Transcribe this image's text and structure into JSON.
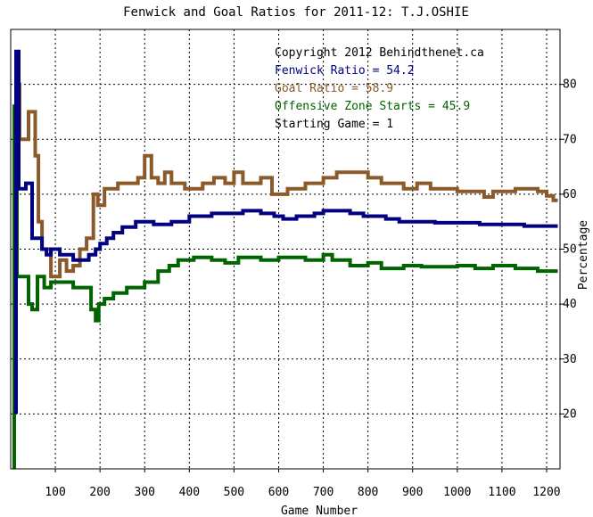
{
  "chart_data": {
    "type": "line",
    "title": "Fenwick and Goal Ratios for 2011-12: T.J.OSHIE",
    "xlabel": "Game Number",
    "ylabel": "Percentage",
    "xlim": [
      0,
      1230
    ],
    "ylim": [
      10,
      90
    ],
    "x_ticks": [
      100,
      200,
      300,
      400,
      500,
      600,
      700,
      800,
      900,
      1000,
      1100,
      1200
    ],
    "y_ticks": [
      20,
      30,
      40,
      50,
      60,
      70,
      80
    ],
    "grid": true,
    "legend_position": "top-right",
    "annotations": [
      "Copyright 2012 Behindthenet.ca",
      "Fenwick Ratio = 54.2",
      "Goal Ratio = 58.9",
      "Offensive Zone Starts = 45.9",
      "Starting Game = 1"
    ],
    "series": [
      {
        "name": "Fenwick Ratio",
        "color": "#000080",
        "points": [
          [
            12,
            20
          ],
          [
            12,
            86
          ],
          [
            18,
            86
          ],
          [
            18,
            61
          ],
          [
            34,
            61
          ],
          [
            34,
            62
          ],
          [
            48,
            62
          ],
          [
            48,
            52
          ],
          [
            70,
            52
          ],
          [
            70,
            50
          ],
          [
            80,
            50
          ],
          [
            80,
            49
          ],
          [
            90,
            49
          ],
          [
            90,
            50
          ],
          [
            110,
            50
          ],
          [
            110,
            49
          ],
          [
            140,
            49
          ],
          [
            140,
            48
          ],
          [
            175,
            48
          ],
          [
            175,
            49
          ],
          [
            190,
            49
          ],
          [
            190,
            50
          ],
          [
            200,
            50
          ],
          [
            200,
            51
          ],
          [
            215,
            51
          ],
          [
            215,
            52
          ],
          [
            230,
            52
          ],
          [
            230,
            53
          ],
          [
            250,
            53
          ],
          [
            250,
            54
          ],
          [
            280,
            54
          ],
          [
            280,
            55
          ],
          [
            320,
            55
          ],
          [
            320,
            54.5
          ],
          [
            360,
            54.5
          ],
          [
            360,
            55
          ],
          [
            400,
            55
          ],
          [
            400,
            56
          ],
          [
            450,
            56
          ],
          [
            450,
            56.5
          ],
          [
            520,
            56.5
          ],
          [
            520,
            57
          ],
          [
            560,
            57
          ],
          [
            560,
            56.5
          ],
          [
            590,
            56.5
          ],
          [
            590,
            56
          ],
          [
            610,
            56
          ],
          [
            610,
            55.5
          ],
          [
            640,
            55.5
          ],
          [
            640,
            56
          ],
          [
            680,
            56
          ],
          [
            680,
            56.5
          ],
          [
            700,
            56.5
          ],
          [
            700,
            57
          ],
          [
            760,
            57
          ],
          [
            760,
            56.5
          ],
          [
            790,
            56.5
          ],
          [
            790,
            56
          ],
          [
            840,
            56
          ],
          [
            840,
            55.5
          ],
          [
            870,
            55.5
          ],
          [
            870,
            55
          ],
          [
            950,
            55
          ],
          [
            950,
            54.8
          ],
          [
            1050,
            54.8
          ],
          [
            1050,
            54.5
          ],
          [
            1150,
            54.5
          ],
          [
            1150,
            54.2
          ],
          [
            1225,
            54.2
          ]
        ]
      },
      {
        "name": "Goal Ratio",
        "color": "#8b5a2b",
        "points": [
          [
            12,
            50
          ],
          [
            12,
            80
          ],
          [
            20,
            80
          ],
          [
            20,
            70
          ],
          [
            40,
            70
          ],
          [
            40,
            75
          ],
          [
            55,
            75
          ],
          [
            55,
            67
          ],
          [
            62,
            67
          ],
          [
            62,
            55
          ],
          [
            70,
            55
          ],
          [
            70,
            50
          ],
          [
            90,
            50
          ],
          [
            90,
            45
          ],
          [
            110,
            45
          ],
          [
            110,
            48
          ],
          [
            125,
            48
          ],
          [
            125,
            46
          ],
          [
            140,
            46
          ],
          [
            140,
            47
          ],
          [
            155,
            47
          ],
          [
            155,
            50
          ],
          [
            170,
            50
          ],
          [
            170,
            52
          ],
          [
            185,
            52
          ],
          [
            185,
            60
          ],
          [
            195,
            60
          ],
          [
            195,
            58
          ],
          [
            210,
            58
          ],
          [
            210,
            61
          ],
          [
            240,
            61
          ],
          [
            240,
            62
          ],
          [
            285,
            62
          ],
          [
            285,
            63
          ],
          [
            300,
            63
          ],
          [
            300,
            67
          ],
          [
            315,
            67
          ],
          [
            315,
            63
          ],
          [
            330,
            63
          ],
          [
            330,
            62
          ],
          [
            345,
            62
          ],
          [
            345,
            64
          ],
          [
            360,
            64
          ],
          [
            360,
            62
          ],
          [
            390,
            62
          ],
          [
            390,
            61
          ],
          [
            430,
            61
          ],
          [
            430,
            62
          ],
          [
            455,
            62
          ],
          [
            455,
            63
          ],
          [
            480,
            63
          ],
          [
            480,
            62
          ],
          [
            500,
            62
          ],
          [
            500,
            64
          ],
          [
            520,
            64
          ],
          [
            520,
            62
          ],
          [
            560,
            62
          ],
          [
            560,
            63
          ],
          [
            585,
            63
          ],
          [
            585,
            60
          ],
          [
            620,
            60
          ],
          [
            620,
            61
          ],
          [
            660,
            61
          ],
          [
            660,
            62
          ],
          [
            700,
            62
          ],
          [
            700,
            63
          ],
          [
            730,
            63
          ],
          [
            730,
            64
          ],
          [
            800,
            64
          ],
          [
            800,
            63
          ],
          [
            830,
            63
          ],
          [
            830,
            62
          ],
          [
            880,
            62
          ],
          [
            880,
            61
          ],
          [
            910,
            61
          ],
          [
            910,
            62
          ],
          [
            940,
            62
          ],
          [
            940,
            61
          ],
          [
            1000,
            61
          ],
          [
            1000,
            60.5
          ],
          [
            1060,
            60.5
          ],
          [
            1060,
            59.5
          ],
          [
            1080,
            59.5
          ],
          [
            1080,
            60.5
          ],
          [
            1130,
            60.5
          ],
          [
            1130,
            61
          ],
          [
            1180,
            61
          ],
          [
            1180,
            60.5
          ],
          [
            1200,
            60.5
          ],
          [
            1200,
            59.7
          ],
          [
            1215,
            59.7
          ],
          [
            1215,
            58.9
          ],
          [
            1225,
            58.9
          ]
        ]
      },
      {
        "name": "Offensive Zone Starts",
        "color": "#006400",
        "points": [
          [
            8,
            10
          ],
          [
            8,
            76
          ],
          [
            14,
            76
          ],
          [
            14,
            45
          ],
          [
            40,
            45
          ],
          [
            40,
            40
          ],
          [
            48,
            40
          ],
          [
            48,
            39
          ],
          [
            60,
            39
          ],
          [
            60,
            45
          ],
          [
            75,
            45
          ],
          [
            75,
            43
          ],
          [
            90,
            43
          ],
          [
            90,
            44
          ],
          [
            140,
            44
          ],
          [
            140,
            43
          ],
          [
            180,
            43
          ],
          [
            180,
            39
          ],
          [
            190,
            39
          ],
          [
            190,
            37
          ],
          [
            197,
            37
          ],
          [
            197,
            40
          ],
          [
            210,
            40
          ],
          [
            210,
            41
          ],
          [
            230,
            41
          ],
          [
            230,
            42
          ],
          [
            260,
            42
          ],
          [
            260,
            43
          ],
          [
            300,
            43
          ],
          [
            300,
            44
          ],
          [
            330,
            44
          ],
          [
            330,
            46
          ],
          [
            355,
            46
          ],
          [
            355,
            47
          ],
          [
            375,
            47
          ],
          [
            375,
            48
          ],
          [
            410,
            48
          ],
          [
            410,
            48.5
          ],
          [
            450,
            48.5
          ],
          [
            450,
            48
          ],
          [
            480,
            48
          ],
          [
            480,
            47.5
          ],
          [
            510,
            47.5
          ],
          [
            510,
            48.5
          ],
          [
            560,
            48.5
          ],
          [
            560,
            48
          ],
          [
            600,
            48
          ],
          [
            600,
            48.5
          ],
          [
            660,
            48.5
          ],
          [
            660,
            48
          ],
          [
            700,
            48
          ],
          [
            700,
            49
          ],
          [
            720,
            49
          ],
          [
            720,
            48
          ],
          [
            760,
            48
          ],
          [
            760,
            47
          ],
          [
            800,
            47
          ],
          [
            800,
            47.5
          ],
          [
            830,
            47.5
          ],
          [
            830,
            46.5
          ],
          [
            880,
            46.5
          ],
          [
            880,
            47
          ],
          [
            920,
            47
          ],
          [
            920,
            46.8
          ],
          [
            1000,
            46.8
          ],
          [
            1000,
            47
          ],
          [
            1040,
            47
          ],
          [
            1040,
            46.5
          ],
          [
            1080,
            46.5
          ],
          [
            1080,
            47
          ],
          [
            1130,
            47
          ],
          [
            1130,
            46.5
          ],
          [
            1180,
            46.5
          ],
          [
            1180,
            46
          ],
          [
            1225,
            46
          ]
        ]
      }
    ]
  }
}
